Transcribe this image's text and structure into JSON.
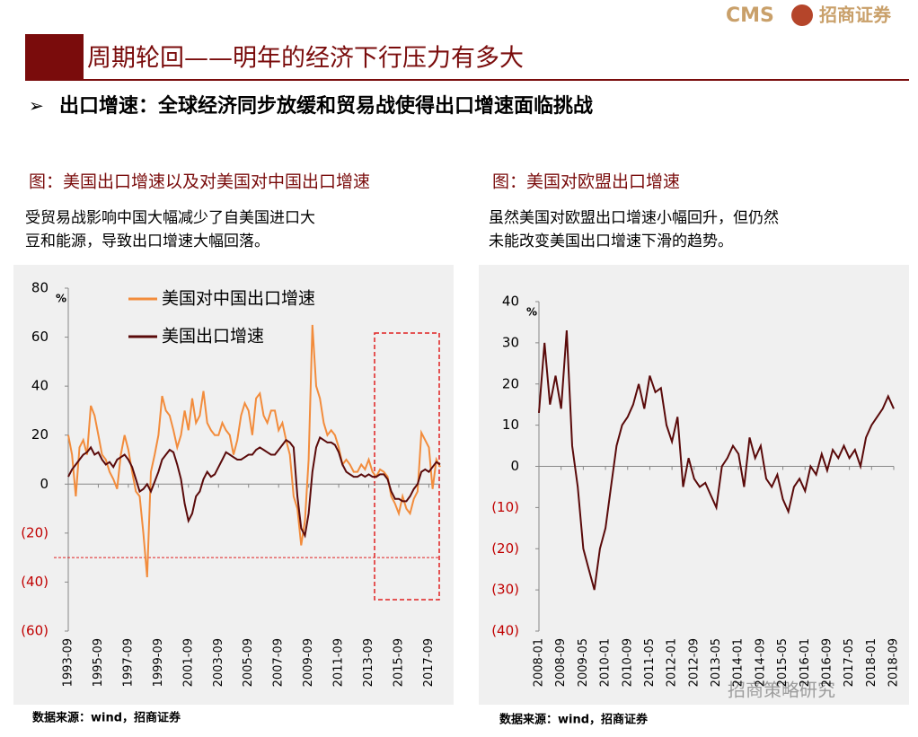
{
  "header": {
    "logo_text": "CMS",
    "company": "招商证券",
    "title": "周期轮回——明年的经济下行压力有多大",
    "bullet": "出口增速：全球经济同步放缓和贸易战使得出口增速面临挑战",
    "watermark": "招商策略研究"
  },
  "chart_data": [
    {
      "type": "line",
      "title": "图：美国出口增速以及对美国对中国出口增速",
      "caption": [
        "受贸易战影响中国大幅减少了自美国进口大",
        "豆和能源，导致出口增速大幅回落。"
      ],
      "source": "数据来源：wind，招商证券",
      "unit": "%",
      "ylim": [
        -60,
        80
      ],
      "yticks": [
        80,
        60,
        40,
        20,
        0,
        {
          "value": -20,
          "label": "(20)"
        },
        {
          "value": -40,
          "label": "(40)"
        },
        {
          "value": -60,
          "label": "(60)"
        }
      ],
      "reference_line": -30,
      "categories": [
        "1993-09",
        null,
        null,
        null,
        null,
        null,
        null,
        null,
        "1995-09",
        null,
        null,
        null,
        null,
        null,
        null,
        null,
        "1997-09",
        null,
        null,
        null,
        null,
        null,
        null,
        null,
        "1999-09",
        null,
        null,
        null,
        null,
        null,
        null,
        null,
        "2001-09",
        null,
        null,
        null,
        null,
        null,
        null,
        null,
        "2003-09",
        null,
        null,
        null,
        null,
        null,
        null,
        null,
        "2005-09",
        null,
        null,
        null,
        null,
        null,
        null,
        null,
        "2007-09",
        null,
        null,
        null,
        null,
        null,
        null,
        null,
        "2009-09",
        null,
        null,
        null,
        null,
        null,
        null,
        null,
        "2011-09",
        null,
        null,
        null,
        null,
        null,
        null,
        null,
        "2013-09",
        null,
        null,
        null,
        null,
        null,
        null,
        null,
        "2015-09",
        null,
        null,
        null,
        null,
        null,
        null,
        null,
        "2017-09",
        null,
        null,
        null
      ],
      "series": [
        {
          "name": "美国对中国出口增速",
          "color": "#f28c3c",
          "values": [
            20,
            12,
            -5,
            15,
            18,
            12,
            32,
            28,
            20,
            12,
            10,
            5,
            2,
            -2,
            12,
            20,
            14,
            5,
            -3,
            -5,
            -20,
            -38,
            5,
            12,
            20,
            36,
            30,
            28,
            22,
            15,
            20,
            30,
            22,
            35,
            25,
            28,
            38,
            25,
            22,
            20,
            20,
            25,
            22,
            20,
            12,
            18,
            28,
            33,
            30,
            20,
            35,
            37,
            28,
            25,
            30,
            30,
            22,
            25,
            18,
            12,
            -5,
            -10,
            -25,
            -15,
            10,
            65,
            40,
            35,
            25,
            20,
            22,
            20,
            15,
            8,
            10,
            8,
            5,
            5,
            8,
            6,
            10,
            5,
            3,
            6,
            5,
            3,
            -5,
            -8,
            -12,
            -5,
            -10,
            -12,
            -6,
            -3,
            21,
            18,
            15,
            -2,
            10,
            7
          ]
        },
        {
          "name": "美国出口增速",
          "color": "#5a0a0a",
          "values": [
            3,
            6,
            8,
            10,
            12,
            13,
            15,
            12,
            13,
            10,
            8,
            9,
            7,
            10,
            11,
            12,
            10,
            7,
            2,
            -3,
            -2,
            0,
            -3,
            1,
            5,
            10,
            12,
            14,
            13,
            8,
            2,
            -8,
            -15,
            -12,
            -5,
            -3,
            2,
            5,
            3,
            4,
            7,
            10,
            13,
            12,
            11,
            10,
            10,
            11,
            12,
            12,
            14,
            15,
            14,
            13,
            12,
            12,
            14,
            16,
            18,
            17,
            15,
            -5,
            -18,
            -21,
            -12,
            5,
            15,
            19,
            18,
            17,
            17,
            16,
            13,
            8,
            5,
            4,
            3,
            3,
            4,
            3,
            4,
            3,
            3,
            4,
            4,
            2,
            -3,
            -6,
            -6,
            -7,
            -7,
            -5,
            -2,
            0,
            5,
            6,
            5,
            7,
            9,
            8
          ]
        }
      ]
    },
    {
      "type": "line",
      "title": "图：美国对欧盟出口增速",
      "caption": [
        "虽然美国对欧盟出口增速小幅回升，但仍然",
        "未能改变美国出口增速下滑的趋势。"
      ],
      "source": "数据来源：wind，招商证券",
      "unit": "%",
      "ylim": [
        -40,
        40
      ],
      "yticks": [
        40,
        30,
        20,
        10,
        0,
        {
          "value": -10,
          "label": "(10)"
        },
        {
          "value": -20,
          "label": "(20)"
        },
        {
          "value": -30,
          "label": "(30)"
        },
        {
          "value": -40,
          "label": "(40)"
        }
      ],
      "categories": [
        "2008-01",
        null,
        null,
        null,
        "2008-09",
        null,
        null,
        null,
        "2009-05",
        null,
        null,
        null,
        "2010-01",
        null,
        null,
        null,
        "2010-09",
        null,
        null,
        null,
        "2011-05",
        null,
        null,
        null,
        "2012-01",
        null,
        null,
        null,
        "2012-09",
        null,
        null,
        null,
        "2013-05",
        null,
        null,
        null,
        "2014-01",
        null,
        null,
        null,
        "2014-09",
        null,
        null,
        null,
        "2015-05",
        null,
        null,
        null,
        "2016-01",
        null,
        null,
        null,
        "2016-09",
        null,
        null,
        null,
        "2017-05",
        null,
        null,
        null,
        "2018-01",
        null,
        null,
        null,
        "2018-09"
      ],
      "series": [
        {
          "color": "#5a0a0a",
          "values": [
            13,
            30,
            15,
            22,
            14,
            33,
            5,
            -5,
            -20,
            -25,
            -30,
            -20,
            -15,
            -5,
            5,
            10,
            12,
            15,
            20,
            14,
            22,
            18,
            19,
            10,
            6,
            12,
            -5,
            2,
            -3,
            -5,
            -4,
            -7,
            -10,
            0,
            2,
            5,
            3,
            -5,
            7,
            2,
            5,
            -3,
            -5,
            -2,
            -8,
            -11,
            -5,
            -3,
            -6,
            0,
            -2,
            3,
            -1,
            4,
            2,
            5,
            2,
            4,
            0,
            7,
            10,
            12,
            14,
            17,
            14
          ]
        }
      ]
    }
  ]
}
